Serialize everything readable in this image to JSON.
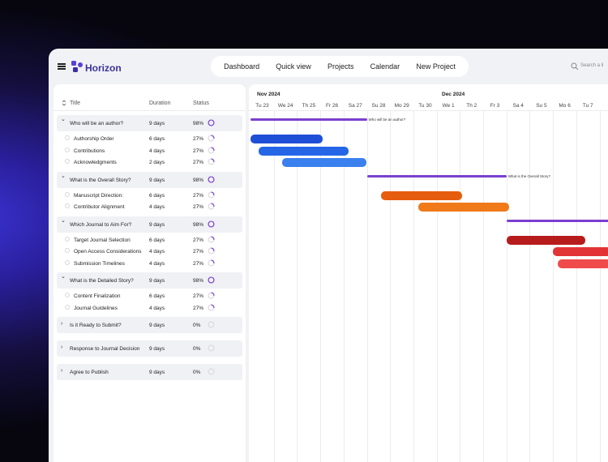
{
  "app": {
    "brand": "Horizon"
  },
  "nav": [
    "Dashboard",
    "Quick view",
    "Projects",
    "Calendar",
    "New Project"
  ],
  "search": {
    "placeholder": "Search a li"
  },
  "table": {
    "headers": {
      "title": "Title",
      "duration": "Duration",
      "status": "Status"
    },
    "groups": [
      {
        "title": "Who will be an author?",
        "duration": "9 days",
        "status": "98%",
        "progress": 0.98,
        "expanded": true,
        "tasks": [
          {
            "title": "Authorship Order",
            "duration": "6 days",
            "status": "27%",
            "progress": 0.27
          },
          {
            "title": "Contributions",
            "duration": "4 days",
            "status": "27%",
            "progress": 0.27
          },
          {
            "title": "Acknowledgments",
            "duration": "2 days",
            "status": "27%",
            "progress": 0.27
          }
        ]
      },
      {
        "title": "What is the Overall Story?",
        "duration": "9 days",
        "status": "98%",
        "progress": 0.98,
        "expanded": true,
        "tasks": [
          {
            "title": "Manuscript Direction:",
            "duration": "6 days",
            "status": "27%",
            "progress": 0.27
          },
          {
            "title": "Contributor Alignment",
            "duration": "4 days",
            "status": "27%",
            "progress": 0.27
          }
        ]
      },
      {
        "title": "Which Journal to Aim For?",
        "duration": "9 days",
        "status": "98%",
        "progress": 0.98,
        "expanded": true,
        "tasks": [
          {
            "title": "Target Journal Selection",
            "duration": "6 days",
            "status": "27%",
            "progress": 0.27
          },
          {
            "title": "Open Access Considerations",
            "duration": "4 days",
            "status": "27%",
            "progress": 0.27
          },
          {
            "title": "Submission Timelines",
            "duration": "4 days",
            "status": "27%",
            "progress": 0.27
          }
        ]
      },
      {
        "title": "What is the Detailed Story?",
        "duration": "9 days",
        "status": "98%",
        "progress": 0.98,
        "expanded": true,
        "tasks": [
          {
            "title": "Content Finalization",
            "duration": "6 days",
            "status": "27%",
            "progress": 0.27
          },
          {
            "title": "Journal Guidelines",
            "duration": "4 days",
            "status": "27%",
            "progress": 0.27
          }
        ]
      },
      {
        "title": "Is it Ready to Submit?",
        "duration": "9 days",
        "status": "0%",
        "progress": 0,
        "expanded": false,
        "tasks": []
      },
      {
        "title": "Response to Journal Decision",
        "duration": "9 days",
        "status": "0%",
        "progress": 0,
        "expanded": false,
        "tasks": []
      },
      {
        "title": "Agree to Publish",
        "duration": "9 days",
        "status": "0%",
        "progress": 0,
        "expanded": false,
        "tasks": []
      }
    ]
  },
  "timeline": {
    "months": [
      "Nov 2024",
      "Dec 2024"
    ],
    "days": [
      "Tu 23",
      "We 24",
      "Th 25",
      "Fr 26",
      "Sa 27",
      "Su 28",
      "Mo 29",
      "Tu 30",
      "We 1",
      "Th 2",
      "Fr 3",
      "Sa 4",
      "Su 5",
      "Mo 6",
      "Tu 7"
    ],
    "summaries": [
      {
        "label": "Who will be an author?",
        "start": 0,
        "end": 5
      },
      {
        "label": "What is the Overall Story?",
        "start": 5,
        "end": 11
      },
      {
        "label": "",
        "start": 11,
        "end": 15.5
      }
    ],
    "bars": [
      {
        "start": 0,
        "end": 3.1,
        "color": "#1f4fd6"
      },
      {
        "start": 0.35,
        "end": 4.2,
        "color": "#2566e6"
      },
      {
        "start": 1.35,
        "end": 5,
        "color": "#3a80ee"
      },
      {
        "start": 5.6,
        "end": 9.1,
        "color": "#e65d0f"
      },
      {
        "start": 7.2,
        "end": 11.1,
        "color": "#f07a1a"
      },
      {
        "start": 11,
        "end": 14.4,
        "color": "#b71c1c"
      },
      {
        "start": 13.0,
        "end": 15.5,
        "color": "#e23434"
      },
      {
        "start": 13.2,
        "end": 15.5,
        "color": "#f04b4b"
      }
    ],
    "colors": {
      "summary": "#7b3fcf",
      "ring": "#7b3fcf"
    }
  }
}
